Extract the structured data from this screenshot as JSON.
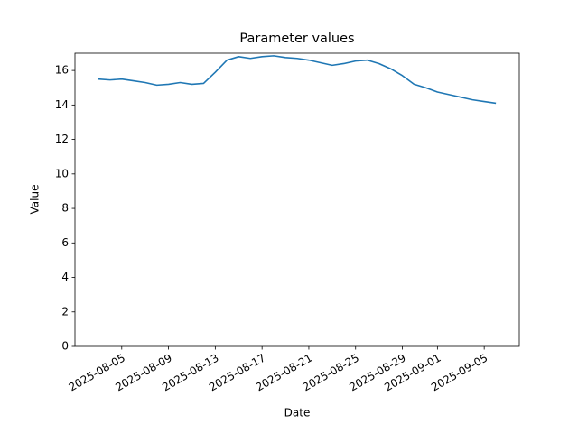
{
  "chart_data": {
    "type": "line",
    "title": "Parameter values",
    "x_label": "Date",
    "y_label": "Value",
    "x": [
      "2025-08-03",
      "2025-08-04",
      "2025-08-05",
      "2025-08-06",
      "2025-08-07",
      "2025-08-08",
      "2025-08-09",
      "2025-08-10",
      "2025-08-11",
      "2025-08-12",
      "2025-08-13",
      "2025-08-14",
      "2025-08-15",
      "2025-08-16",
      "2025-08-17",
      "2025-08-18",
      "2025-08-19",
      "2025-08-20",
      "2025-08-21",
      "2025-08-22",
      "2025-08-23",
      "2025-08-24",
      "2025-08-25",
      "2025-08-26",
      "2025-08-27",
      "2025-08-28",
      "2025-08-29",
      "2025-08-30",
      "2025-08-31",
      "2025-09-01",
      "2025-09-02",
      "2025-09-03",
      "2025-09-04",
      "2025-09-05",
      "2025-09-06"
    ],
    "series": [
      {
        "color": "#1f77b4",
        "values": [
          15.5,
          15.45,
          15.5,
          15.4,
          15.3,
          15.15,
          15.2,
          15.3,
          15.2,
          15.25,
          15.9,
          16.6,
          16.8,
          16.7,
          16.8,
          16.85,
          16.75,
          16.7,
          16.6,
          16.45,
          16.3,
          16.4,
          16.55,
          16.6,
          16.4,
          16.1,
          15.7,
          15.2,
          15.0,
          14.75,
          14.6,
          14.45,
          14.3,
          14.2,
          14.1
        ]
      }
    ],
    "xlim": [
      "2025-08-01",
      "2025-09-08"
    ],
    "xticks": [
      "2025-08-05",
      "2025-08-09",
      "2025-08-13",
      "2025-08-17",
      "2025-08-21",
      "2025-08-25",
      "2025-08-29",
      "2025-09-01",
      "2025-09-05"
    ],
    "ylim": [
      0,
      17
    ],
    "yticks": [
      0,
      2,
      4,
      6,
      8,
      10,
      12,
      14,
      16
    ],
    "grid": false
  }
}
